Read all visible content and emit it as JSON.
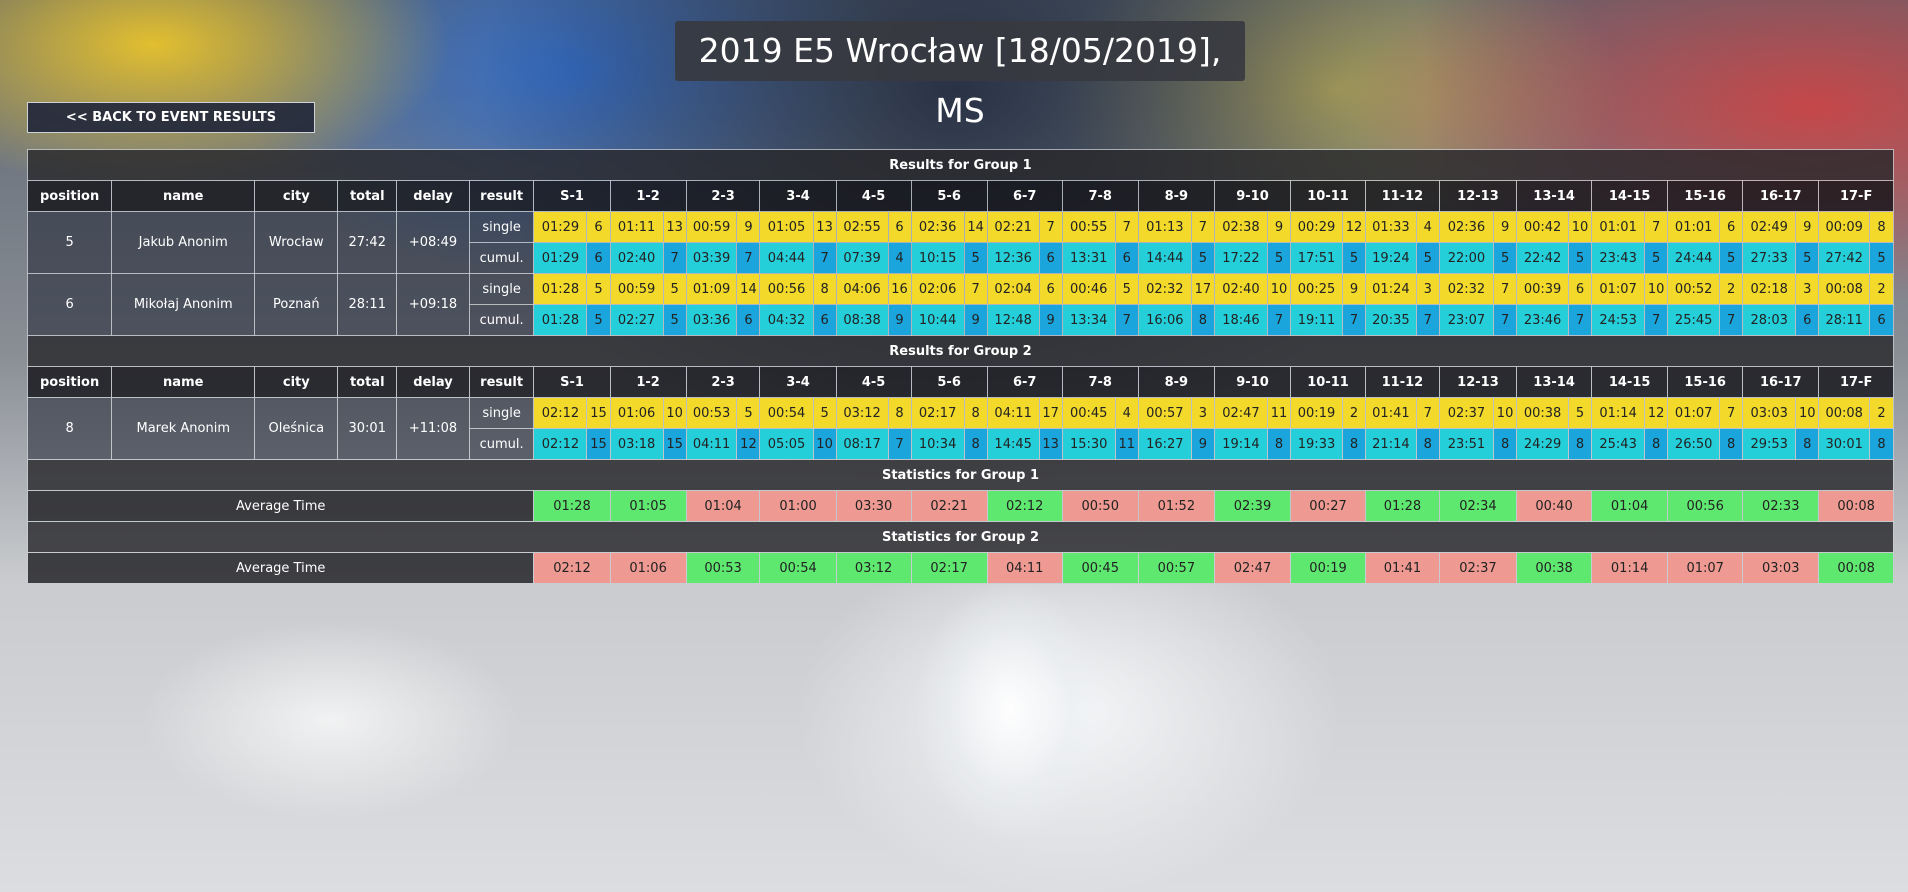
{
  "title": "2019 E5 Wrocław [18/05/2019], MS",
  "back_button": "<< BACK TO EVENT RESULTS",
  "columns": {
    "position": "position",
    "name": "name",
    "city": "city",
    "total": "total",
    "delay": "delay",
    "result": "result"
  },
  "legs": [
    "S-1",
    "1-2",
    "2-3",
    "3-4",
    "4-5",
    "5-6",
    "6-7",
    "7-8",
    "8-9",
    "9-10",
    "10-11",
    "11-12",
    "12-13",
    "13-14",
    "14-15",
    "15-16",
    "16-17",
    "17-F"
  ],
  "row_labels": {
    "single": "single",
    "cumul": "cumul."
  },
  "groups": [
    {
      "heading": "Results for Group 1",
      "runners": [
        {
          "position": "5",
          "name": "Jakub Anonim",
          "city": "Wrocław",
          "total": "27:42",
          "delay": "+08:49",
          "single": [
            [
              "01:29",
              "6"
            ],
            [
              "01:11",
              "13"
            ],
            [
              "00:59",
              "9"
            ],
            [
              "01:05",
              "13"
            ],
            [
              "02:55",
              "6"
            ],
            [
              "02:36",
              "14"
            ],
            [
              "02:21",
              "7"
            ],
            [
              "00:55",
              "7"
            ],
            [
              "01:13",
              "7"
            ],
            [
              "02:38",
              "9"
            ],
            [
              "00:29",
              "12"
            ],
            [
              "01:33",
              "4"
            ],
            [
              "02:36",
              "9"
            ],
            [
              "00:42",
              "10"
            ],
            [
              "01:01",
              "7"
            ],
            [
              "01:01",
              "6"
            ],
            [
              "02:49",
              "9"
            ],
            [
              "00:09",
              "8"
            ]
          ],
          "cumul": [
            [
              "01:29",
              "6"
            ],
            [
              "02:40",
              "7"
            ],
            [
              "03:39",
              "7"
            ],
            [
              "04:44",
              "7"
            ],
            [
              "07:39",
              "4"
            ],
            [
              "10:15",
              "5"
            ],
            [
              "12:36",
              "6"
            ],
            [
              "13:31",
              "6"
            ],
            [
              "14:44",
              "5"
            ],
            [
              "17:22",
              "5"
            ],
            [
              "17:51",
              "5"
            ],
            [
              "19:24",
              "5"
            ],
            [
              "22:00",
              "5"
            ],
            [
              "22:42",
              "5"
            ],
            [
              "23:43",
              "5"
            ],
            [
              "24:44",
              "5"
            ],
            [
              "27:33",
              "5"
            ],
            [
              "27:42",
              "5"
            ]
          ]
        },
        {
          "position": "6",
          "name": "Mikołaj Anonim",
          "city": "Poznań",
          "total": "28:11",
          "delay": "+09:18",
          "single": [
            [
              "01:28",
              "5"
            ],
            [
              "00:59",
              "5"
            ],
            [
              "01:09",
              "14"
            ],
            [
              "00:56",
              "8"
            ],
            [
              "04:06",
              "16"
            ],
            [
              "02:06",
              "7"
            ],
            [
              "02:04",
              "6"
            ],
            [
              "00:46",
              "5"
            ],
            [
              "02:32",
              "17"
            ],
            [
              "02:40",
              "10"
            ],
            [
              "00:25",
              "9"
            ],
            [
              "01:24",
              "3"
            ],
            [
              "02:32",
              "7"
            ],
            [
              "00:39",
              "6"
            ],
            [
              "01:07",
              "10"
            ],
            [
              "00:52",
              "2"
            ],
            [
              "02:18",
              "3"
            ],
            [
              "00:08",
              "2"
            ]
          ],
          "cumul": [
            [
              "01:28",
              "5"
            ],
            [
              "02:27",
              "5"
            ],
            [
              "03:36",
              "6"
            ],
            [
              "04:32",
              "6"
            ],
            [
              "08:38",
              "9"
            ],
            [
              "10:44",
              "9"
            ],
            [
              "12:48",
              "9"
            ],
            [
              "13:34",
              "7"
            ],
            [
              "16:06",
              "8"
            ],
            [
              "18:46",
              "7"
            ],
            [
              "19:11",
              "7"
            ],
            [
              "20:35",
              "7"
            ],
            [
              "23:07",
              "7"
            ],
            [
              "23:46",
              "7"
            ],
            [
              "24:53",
              "7"
            ],
            [
              "25:45",
              "7"
            ],
            [
              "28:03",
              "6"
            ],
            [
              "28:11",
              "6"
            ]
          ]
        }
      ]
    },
    {
      "heading": "Results for Group 2",
      "runners": [
        {
          "position": "8",
          "name": "Marek Anonim",
          "city": "Oleśnica",
          "total": "30:01",
          "delay": "+11:08",
          "single": [
            [
              "02:12",
              "15"
            ],
            [
              "01:06",
              "10"
            ],
            [
              "00:53",
              "5"
            ],
            [
              "00:54",
              "5"
            ],
            [
              "03:12",
              "8"
            ],
            [
              "02:17",
              "8"
            ],
            [
              "04:11",
              "17"
            ],
            [
              "00:45",
              "4"
            ],
            [
              "00:57",
              "3"
            ],
            [
              "02:47",
              "11"
            ],
            [
              "00:19",
              "2"
            ],
            [
              "01:41",
              "7"
            ],
            [
              "02:37",
              "10"
            ],
            [
              "00:38",
              "5"
            ],
            [
              "01:14",
              "12"
            ],
            [
              "01:07",
              "7"
            ],
            [
              "03:03",
              "10"
            ],
            [
              "00:08",
              "2"
            ]
          ],
          "cumul": [
            [
              "02:12",
              "15"
            ],
            [
              "03:18",
              "15"
            ],
            [
              "04:11",
              "12"
            ],
            [
              "05:05",
              "10"
            ],
            [
              "08:17",
              "7"
            ],
            [
              "10:34",
              "8"
            ],
            [
              "14:45",
              "13"
            ],
            [
              "15:30",
              "11"
            ],
            [
              "16:27",
              "9"
            ],
            [
              "19:14",
              "8"
            ],
            [
              "19:33",
              "8"
            ],
            [
              "21:14",
              "8"
            ],
            [
              "23:51",
              "8"
            ],
            [
              "24:29",
              "8"
            ],
            [
              "25:43",
              "8"
            ],
            [
              "26:50",
              "8"
            ],
            [
              "29:53",
              "8"
            ],
            [
              "30:01",
              "8"
            ]
          ]
        }
      ]
    }
  ],
  "statistics": [
    {
      "heading": "Statistics for Group 1",
      "label": "Average Time",
      "values": [
        [
          "01:28",
          "green"
        ],
        [
          "01:05",
          "green"
        ],
        [
          "01:04",
          "red"
        ],
        [
          "01:00",
          "red"
        ],
        [
          "03:30",
          "red"
        ],
        [
          "02:21",
          "red"
        ],
        [
          "02:12",
          "green"
        ],
        [
          "00:50",
          "red"
        ],
        [
          "01:52",
          "red"
        ],
        [
          "02:39",
          "green"
        ],
        [
          "00:27",
          "red"
        ],
        [
          "01:28",
          "green"
        ],
        [
          "02:34",
          "green"
        ],
        [
          "00:40",
          "red"
        ],
        [
          "01:04",
          "green"
        ],
        [
          "00:56",
          "green"
        ],
        [
          "02:33",
          "green"
        ],
        [
          "00:08",
          "red"
        ]
      ]
    },
    {
      "heading": "Statistics for Group 2",
      "label": "Average Time",
      "values": [
        [
          "02:12",
          "red"
        ],
        [
          "01:06",
          "red"
        ],
        [
          "00:53",
          "green"
        ],
        [
          "00:54",
          "green"
        ],
        [
          "03:12",
          "green"
        ],
        [
          "02:17",
          "green"
        ],
        [
          "04:11",
          "red"
        ],
        [
          "00:45",
          "green"
        ],
        [
          "00:57",
          "green"
        ],
        [
          "02:47",
          "red"
        ],
        [
          "00:19",
          "green"
        ],
        [
          "01:41",
          "red"
        ],
        [
          "02:37",
          "red"
        ],
        [
          "00:38",
          "green"
        ],
        [
          "01:14",
          "red"
        ],
        [
          "01:07",
          "red"
        ],
        [
          "03:03",
          "red"
        ],
        [
          "00:08",
          "green"
        ]
      ]
    }
  ],
  "colors": {
    "single_bg": "#f2d92a",
    "cumul_bg": "#25cfd9",
    "cumul_place_bg": "#1aa5dc",
    "better_bg": "#5fe870",
    "worse_bg": "#ee9a92"
  }
}
